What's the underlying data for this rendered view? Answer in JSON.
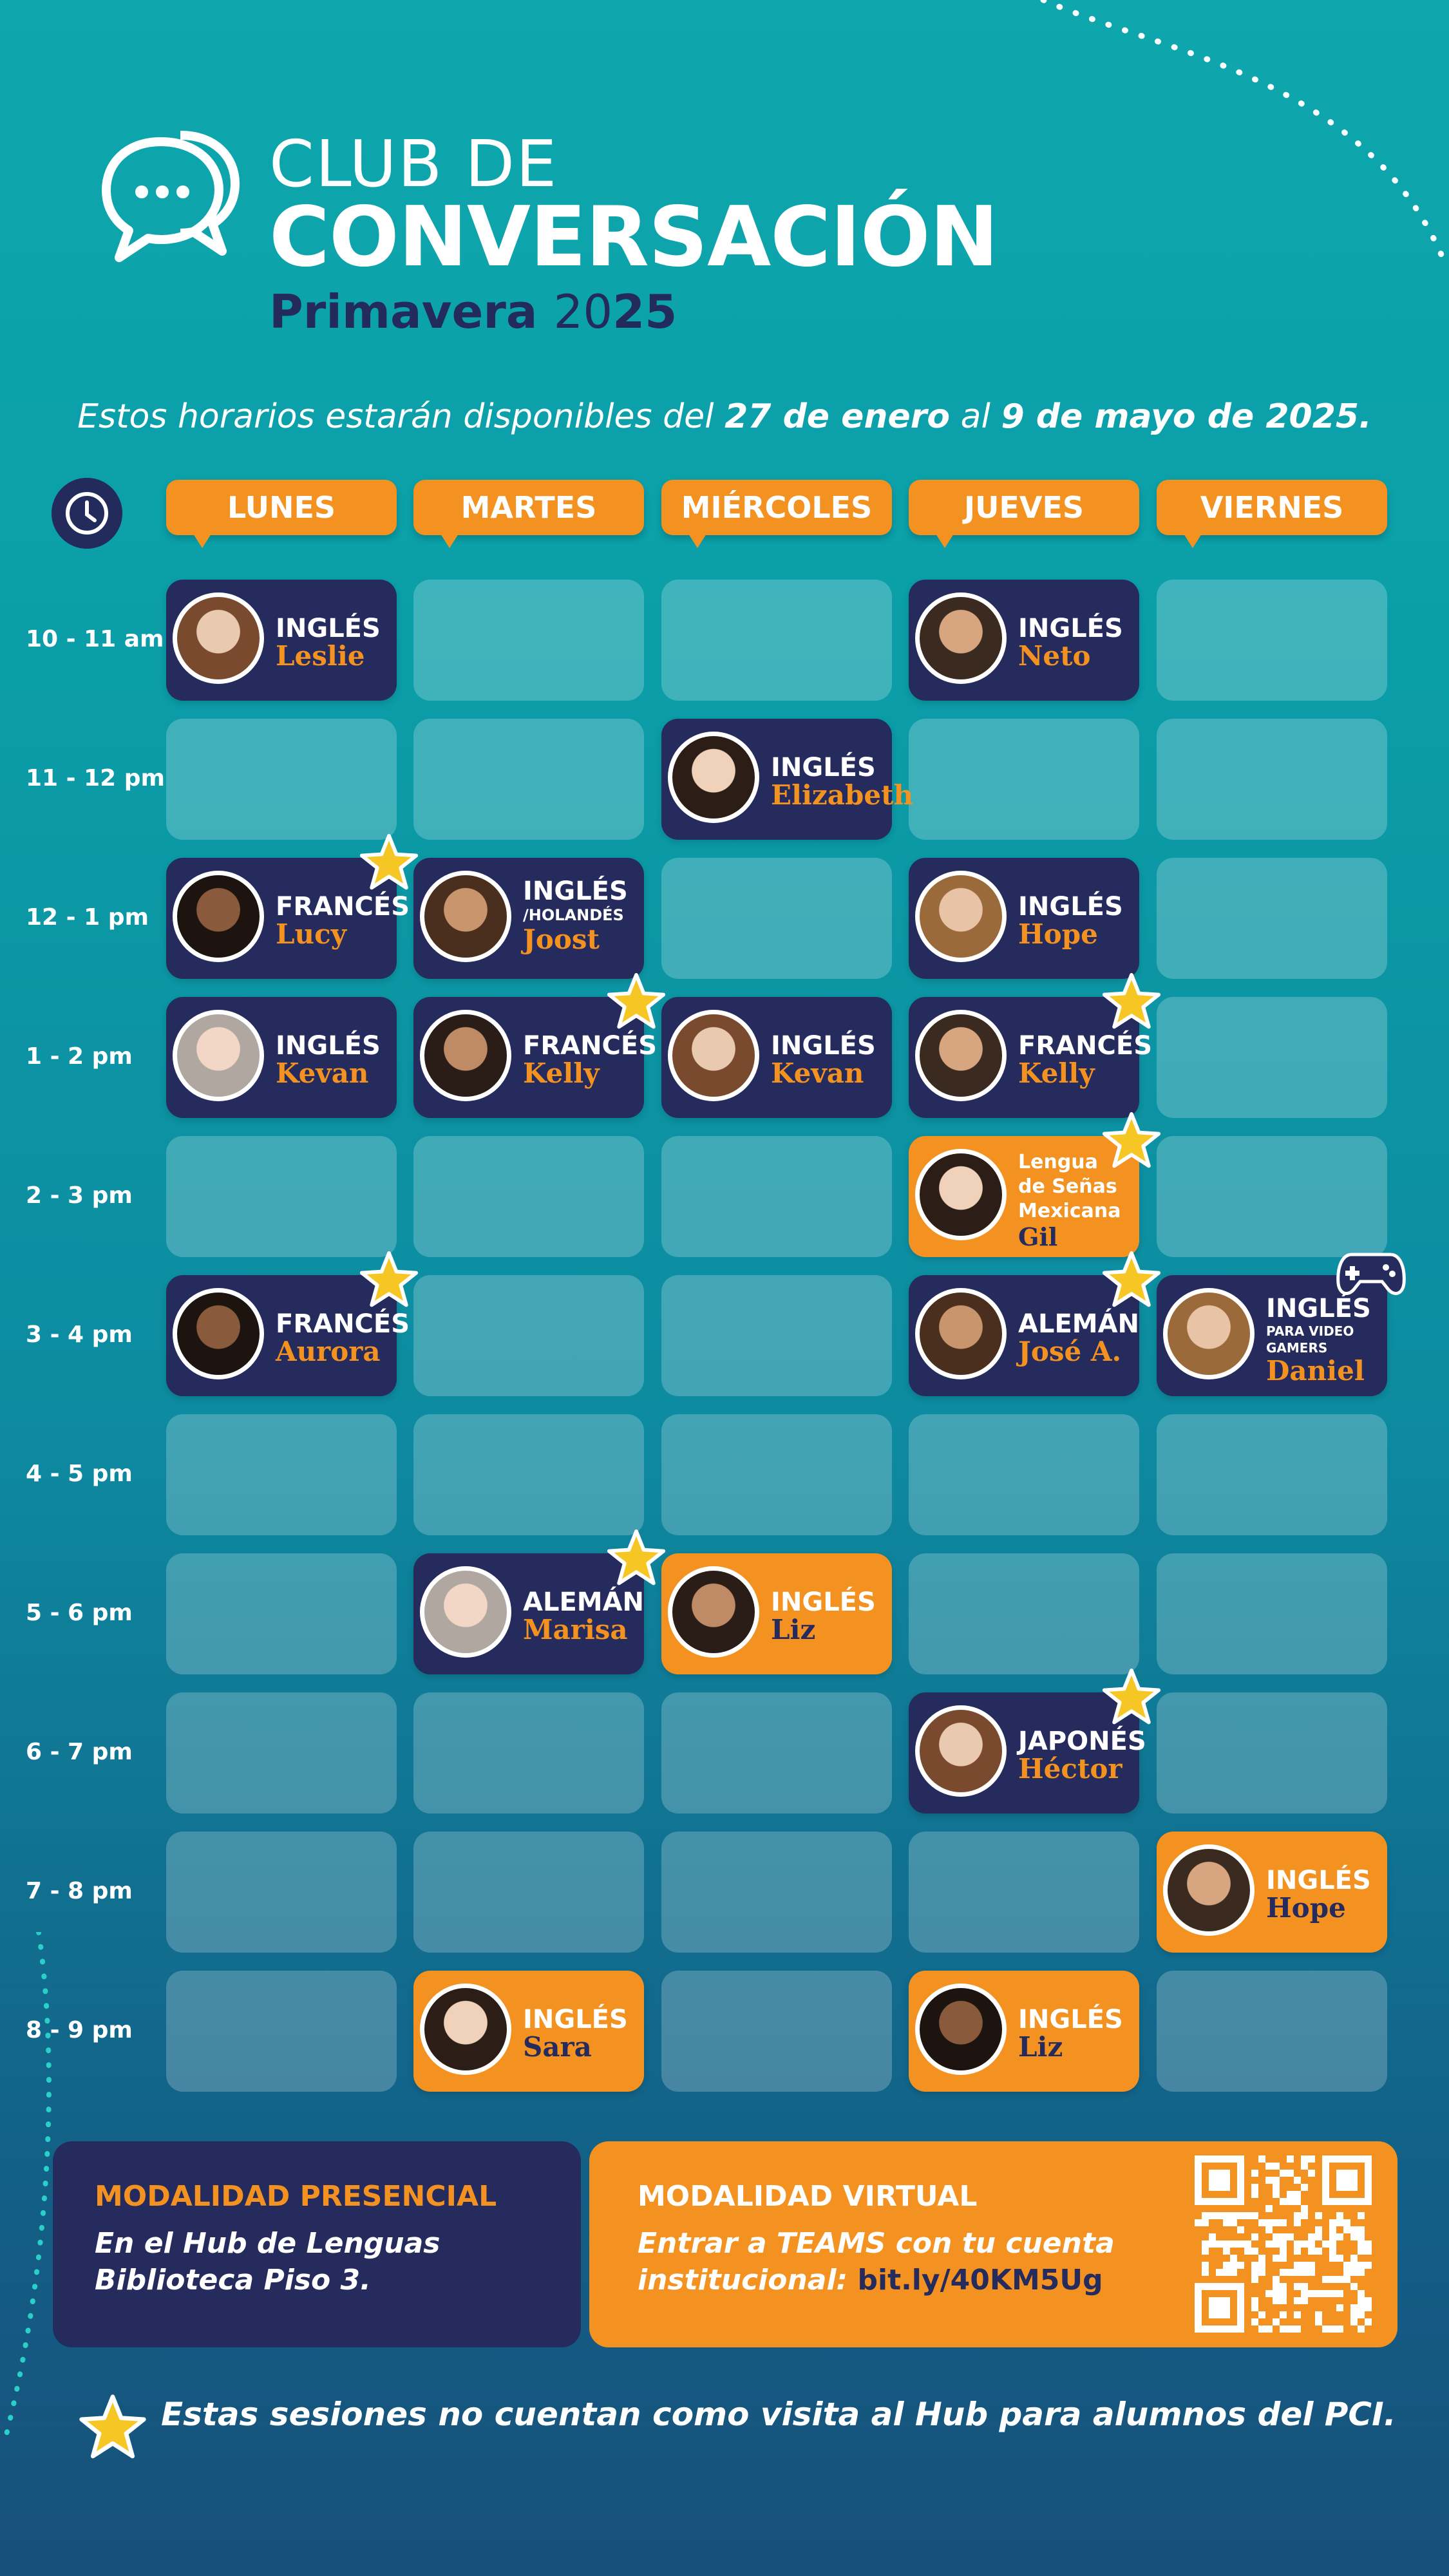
{
  "header": {
    "title_line1": "CLUB DE",
    "title_line2": "CONVERSACIÓN",
    "season": "Primavera",
    "year_a": "20",
    "year_b": "25",
    "dates_pre": "Estos horarios estarán disponibles del ",
    "dates_b1": "27 de enero",
    "dates_mid": " al ",
    "dates_b2": "9 de mayo de 2025."
  },
  "days": [
    "LUNES",
    "MARTES",
    "MIÉRCOLES",
    "JUEVES",
    "VIERNES"
  ],
  "times": [
    "10 - 11 am",
    "11 - 12 pm",
    "12 - 1 pm",
    "1 - 2 pm",
    "2 - 3 pm",
    "3 - 4 pm",
    "4 - 5 pm",
    "5 - 6 pm",
    "6 - 7 pm",
    "7 - 8 pm",
    "8 - 9 pm"
  ],
  "sessions": [
    {
      "day": 0,
      "time": 0,
      "lang": "INGLÉS",
      "name": "Leslie",
      "color": "navy",
      "star": false
    },
    {
      "day": 3,
      "time": 0,
      "lang": "INGLÉS",
      "name": "Neto",
      "color": "navy",
      "star": false
    },
    {
      "day": 2,
      "time": 1,
      "lang": "INGLÉS",
      "name": "Elizabeth",
      "color": "navy",
      "star": false
    },
    {
      "day": 0,
      "time": 2,
      "lang": "FRANCÉS",
      "name": "Lucy",
      "color": "navy",
      "star": true
    },
    {
      "day": 1,
      "time": 2,
      "lang": "INGLÉS",
      "sub": "/HOLANDÉS",
      "name": "Joost",
      "color": "navy",
      "star": false
    },
    {
      "day": 3,
      "time": 2,
      "lang": "INGLÉS",
      "name": "Hope",
      "color": "navy",
      "star": false
    },
    {
      "day": 0,
      "time": 3,
      "lang": "INGLÉS",
      "name": "Kevan",
      "color": "navy",
      "star": false
    },
    {
      "day": 1,
      "time": 3,
      "lang": "FRANCÉS",
      "name": "Kelly",
      "color": "navy",
      "star": true
    },
    {
      "day": 2,
      "time": 3,
      "lang": "INGLÉS",
      "name": "Kevan",
      "color": "navy",
      "star": false
    },
    {
      "day": 3,
      "time": 3,
      "lang": "FRANCÉS",
      "name": "Kelly",
      "color": "navy",
      "star": true
    },
    {
      "day": 3,
      "time": 4,
      "lang_lines": [
        "Lengua",
        "de Señas",
        "Mexicana"
      ],
      "name": "Gil",
      "color": "orange",
      "star": true
    },
    {
      "day": 0,
      "time": 5,
      "lang": "FRANCÉS",
      "name": "Aurora",
      "color": "navy",
      "star": true
    },
    {
      "day": 3,
      "time": 5,
      "lang": "ALEMÁN",
      "name": "José A.",
      "color": "navy",
      "star": true
    },
    {
      "day": 4,
      "time": 5,
      "lang": "INGLÉS",
      "sub_lines": [
        "PARA VIDEO",
        "GAMERS"
      ],
      "name": "Daniel",
      "color": "navy",
      "star": false,
      "gamepad": true
    },
    {
      "day": 1,
      "time": 7,
      "lang": "ALEMÁN",
      "name": "Marisa",
      "color": "navy",
      "star": true
    },
    {
      "day": 2,
      "time": 7,
      "lang": "INGLÉS",
      "name": "Liz",
      "color": "orange",
      "star": false
    },
    {
      "day": 3,
      "time": 8,
      "lang": "JAPONÉS",
      "name": "Héctor",
      "color": "navy",
      "star": true
    },
    {
      "day": 4,
      "time": 9,
      "lang": "INGLÉS",
      "name": "Hope",
      "color": "orange",
      "star": false
    },
    {
      "day": 1,
      "time": 10,
      "lang": "INGLÉS",
      "name": "Sara",
      "color": "orange",
      "star": false
    },
    {
      "day": 3,
      "time": 10,
      "lang": "INGLÉS",
      "name": "Liz",
      "color": "orange",
      "star": false
    }
  ],
  "presencial": {
    "heading": "MODALIDAD PRESENCIAL",
    "line1": "En el Hub de Lenguas",
    "line2": "Biblioteca Piso 3."
  },
  "virtual": {
    "heading": "MODALIDAD VIRTUAL",
    "line1": "Entrar a TEAMS con tu cuenta",
    "line2": "institucional: ",
    "link": "bit.ly/40KM5Ug"
  },
  "footnote": "Estas sesiones no cuentan como visita al Hub para alumnos del PCI.",
  "colors": {
    "navy": "#252b5d",
    "orange": "#f39220",
    "star": "#f6c624"
  }
}
